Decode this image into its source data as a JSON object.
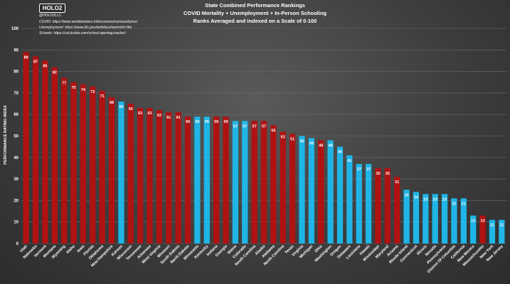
{
  "logo_text": "HOLO2",
  "handle": "@HOLO2LLC",
  "sources": {
    "covid": "COVID: https://www.worldometers.info/coronavirus/country/us/",
    "unemployment": "Unemployment: https://www.bls.gov/web/laus/laumstrk.htm",
    "schools": "Schools: https://cai.burbio.com/school-opening-tracker/"
  },
  "colors": {
    "red_series": "#b01212",
    "blue_series": "#1fb5e6",
    "background": "#3e3e3e"
  },
  "chart_data": {
    "type": "bar",
    "title": "State Combined Performance Rankings",
    "subtitle": "COVID Mortality + Unemployment + In-Person Schooling",
    "subtitle2": "Ranks Averaged and Indexed on a Scale of 0-100",
    "ylabel": "PERFORMANCE RATING INDEX",
    "xlabel": "",
    "ylim": [
      0,
      100
    ],
    "yticks": [
      0,
      10,
      20,
      30,
      40,
      50,
      60,
      70,
      80,
      90,
      100
    ],
    "grid": true,
    "categories": [
      "Utah",
      "Nebraska",
      "Vermont",
      "Montana",
      "Wyoming",
      "Idaho",
      "Iowa",
      "Florida",
      "Oklahoma",
      "New Hampshire",
      "Kansas",
      "Wisconsin",
      "Tennessee",
      "Arkansas",
      "West Virginia",
      "Missouri",
      "South Dakota",
      "North Dakota",
      "Minnesota",
      "Kentucky",
      "Indiana",
      "Georgia",
      "Maine",
      "Colorado",
      "South Carolina",
      "Alaska",
      "Alabama",
      "North Carolina",
      "Texas",
      "Virginia",
      "Michigan",
      "Ohio",
      "Washington",
      "Oregon",
      "Delaware",
      "Louisiana",
      "Hawaii",
      "Mississippi",
      "Maryland",
      "Arizona",
      "Rhode Island",
      "Connecticut",
      "Illinois",
      "Nevada",
      "Pennsylvania",
      "District Of Columbia",
      "California",
      "New Mexico",
      "Massachusetts",
      "New York",
      "New Jersey"
    ],
    "values": [
      89,
      87,
      85,
      82,
      77,
      75,
      74,
      73,
      71,
      68,
      66,
      65,
      63,
      63,
      62,
      61,
      61,
      59,
      59,
      59,
      59,
      59,
      57,
      57,
      57,
      57,
      55,
      52,
      51,
      50,
      49,
      48,
      48,
      45,
      41,
      37,
      37,
      35,
      35,
      31,
      25,
      24,
      23,
      23,
      23,
      21,
      21,
      13,
      13,
      11,
      11
    ],
    "bar_colors": [
      "red",
      "red",
      "red",
      "red",
      "red",
      "red",
      "red",
      "red",
      "red",
      "red",
      "blue",
      "red",
      "red",
      "red",
      "red",
      "red",
      "red",
      "red",
      "blue",
      "blue",
      "red",
      "red",
      "blue",
      "blue",
      "red",
      "red",
      "red",
      "red",
      "red",
      "blue",
      "blue",
      "red",
      "blue",
      "blue",
      "blue",
      "blue",
      "blue",
      "red",
      "red",
      "red",
      "blue",
      "blue",
      "blue",
      "blue",
      "blue",
      "blue",
      "blue",
      "blue",
      "red",
      "blue",
      "blue"
    ]
  }
}
